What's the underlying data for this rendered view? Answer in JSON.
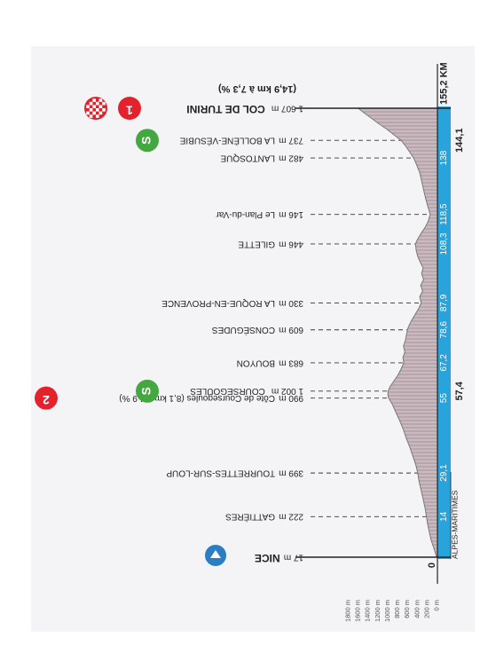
{
  "chart_data": {
    "type": "area",
    "title": "",
    "xlabel": "",
    "ylabel": "",
    "region_label": "ALPES-MARITIMES",
    "start_km_label": "0",
    "total_km": 155.2,
    "x_unit_label": "KM",
    "y_ticks": [
      "0 m",
      "200 m",
      "400 m",
      "600 m",
      "800 m",
      "1000 m",
      "1200 m",
      "1400 m",
      "1600 m",
      "1800 m"
    ],
    "ylim": [
      0,
      1800
    ],
    "km_markers": [
      {
        "km": 14,
        "label": "14"
      },
      {
        "km": 29.1,
        "label": "29,1"
      },
      {
        "km": 55,
        "label": "55"
      },
      {
        "km": 67.2,
        "label": "67,2"
      },
      {
        "km": 78.6,
        "label": "78,6"
      },
      {
        "km": 87.9,
        "label": "87,9"
      },
      {
        "km": 108.3,
        "label": "108,3"
      },
      {
        "km": 118.5,
        "label": "118,5"
      },
      {
        "km": 138,
        "label": "138"
      }
    ],
    "sprints": [
      {
        "km": 57.4,
        "label": "57,4"
      },
      {
        "km": 144.1,
        "label": "144,1"
      }
    ],
    "waypoints": [
      {
        "km": 0,
        "alt": 17,
        "alt_label": "17 m",
        "name": "NICE",
        "bold": true,
        "badge": "start"
      },
      {
        "km": 14,
        "alt": 222,
        "alt_label": "222 m",
        "name": "GATTIÈRES"
      },
      {
        "km": 29.1,
        "alt": 399,
        "alt_label": "399 m",
        "name": "TOURRETTES-SUR-LOUP"
      },
      {
        "km": 55,
        "alt": 990,
        "alt_label": "990 m",
        "name": "Côte de Coursegoules (8,1 km à 4,9 %)",
        "badge": "kom2",
        "badge_text": "2"
      },
      {
        "km": 57.4,
        "alt": 1002,
        "alt_label": "1 002 m",
        "name": "COURSEGOULES",
        "badge": "sprint",
        "badge_text": "S"
      },
      {
        "km": 67.2,
        "alt": 683,
        "alt_label": "683 m",
        "name": "BOUYON"
      },
      {
        "km": 78.6,
        "alt": 609,
        "alt_label": "609 m",
        "name": "CONSÉGUDES"
      },
      {
        "km": 87.9,
        "alt": 330,
        "alt_label": "330 m",
        "name": "LA ROQUE-EN-PROVENCE"
      },
      {
        "km": 108.3,
        "alt": 446,
        "alt_label": "446 m",
        "name": "GILETTE"
      },
      {
        "km": 118.5,
        "alt": 146,
        "alt_label": "146 m",
        "name": "Le Plan-du-Var"
      },
      {
        "km": 138,
        "alt": 482,
        "alt_label": "482 m",
        "name": "LANTOSQUE"
      },
      {
        "km": 144.1,
        "alt": 737,
        "alt_label": "737 m",
        "name": "LA BOLLÈNE-VÉSUBIE",
        "badge": "sprint",
        "badge_text": "S"
      },
      {
        "km": 155.2,
        "alt": 1607,
        "alt_label": "1 607 m",
        "name": "COL DE TURINI",
        "bold": true,
        "badge": "kom1",
        "badge_text": "1",
        "sub": "(14,9 km à 7,3 %)"
      }
    ],
    "profile": [
      [
        0,
        17
      ],
      [
        3,
        70
      ],
      [
        6,
        130
      ],
      [
        9,
        170
      ],
      [
        12,
        205
      ],
      [
        14,
        222
      ],
      [
        17,
        250
      ],
      [
        20,
        290
      ],
      [
        23,
        330
      ],
      [
        26,
        370
      ],
      [
        29.1,
        399
      ],
      [
        32,
        440
      ],
      [
        35,
        500
      ],
      [
        38,
        560
      ],
      [
        41,
        630
      ],
      [
        44,
        690
      ],
      [
        47,
        760
      ],
      [
        50,
        840
      ],
      [
        53,
        920
      ],
      [
        55,
        990
      ],
      [
        56,
        1005
      ],
      [
        57.4,
        1002
      ],
      [
        59,
        960
      ],
      [
        61,
        880
      ],
      [
        63,
        800
      ],
      [
        65,
        740
      ],
      [
        67.2,
        683
      ],
      [
        69,
        700
      ],
      [
        71,
        660
      ],
      [
        73,
        690
      ],
      [
        75,
        650
      ],
      [
        78.6,
        609
      ],
      [
        80,
        580
      ],
      [
        82,
        520
      ],
      [
        84,
        450
      ],
      [
        86,
        380
      ],
      [
        87.9,
        330
      ],
      [
        90,
        360
      ],
      [
        92,
        300
      ],
      [
        94,
        340
      ],
      [
        96,
        280
      ],
      [
        98,
        320
      ],
      [
        100,
        290
      ],
      [
        102,
        350
      ],
      [
        104,
        400
      ],
      [
        106,
        430
      ],
      [
        108.3,
        446
      ],
      [
        110,
        400
      ],
      [
        112,
        330
      ],
      [
        114,
        250
      ],
      [
        116,
        190
      ],
      [
        118.5,
        146
      ],
      [
        121,
        190
      ],
      [
        124,
        240
      ],
      [
        127,
        280
      ],
      [
        130,
        320
      ],
      [
        133,
        360
      ],
      [
        136,
        430
      ],
      [
        138,
        482
      ],
      [
        140,
        560
      ],
      [
        142,
        640
      ],
      [
        144.1,
        737
      ],
      [
        146,
        880
      ],
      [
        148,
        1030
      ],
      [
        150,
        1200
      ],
      [
        152,
        1360
      ],
      [
        154,
        1520
      ],
      [
        155.2,
        1607
      ]
    ],
    "colors": {
      "baseline": "#29a3dc",
      "profile_fill": "#cbb9c0",
      "profile_stroke": "#777777",
      "hatch": "#8a7a80",
      "frame": "#f4f4f6",
      "kom": "#e3222d",
      "sprint": "#44a840",
      "start": "#2a7ec3"
    }
  }
}
